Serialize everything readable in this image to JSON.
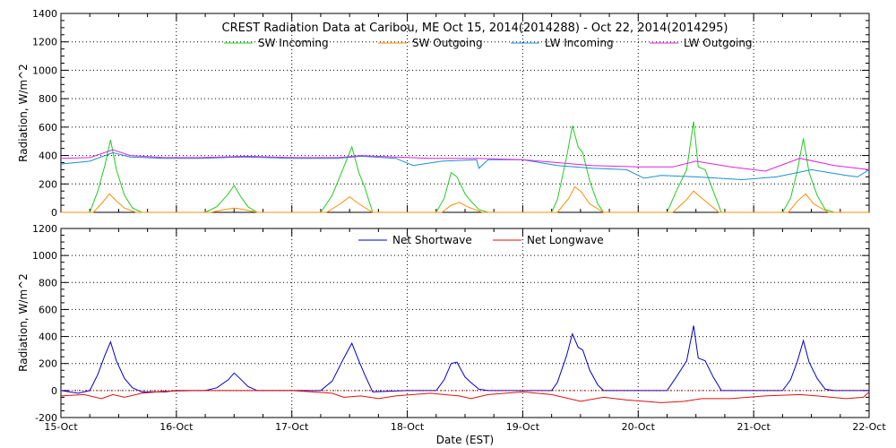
{
  "chart_data": [
    {
      "type": "line",
      "title": "CREST Radiation Data at Caribou, ME   Oct 15, 2014(2014288) - Oct 22, 2014(2014295)",
      "ylabel": "Radiation, W/m^2",
      "xlabel": "",
      "ylim": [
        0,
        1400
      ],
      "yticks": [
        0,
        200,
        400,
        600,
        800,
        1000,
        1200,
        1400
      ],
      "xlim": [
        0,
        7
      ],
      "grid": true,
      "legend": "top",
      "series": [
        {
          "name": "SW Incoming",
          "color": "#22cc22",
          "x": [
            0,
            0.25,
            0.32,
            0.38,
            0.43,
            0.48,
            0.55,
            0.62,
            0.7,
            1.0,
            1.25,
            1.35,
            1.45,
            1.5,
            1.55,
            1.62,
            1.7,
            2.0,
            2.25,
            2.35,
            2.45,
            2.52,
            2.58,
            2.63,
            2.7,
            3.0,
            3.25,
            3.32,
            3.38,
            3.43,
            3.5,
            3.55,
            3.62,
            3.7,
            4.0,
            4.25,
            4.3,
            4.38,
            4.43,
            4.48,
            4.52,
            4.58,
            4.65,
            4.7,
            5.0,
            5.25,
            5.33,
            5.42,
            5.48,
            5.52,
            5.58,
            5.65,
            5.72,
            6.0,
            6.25,
            6.32,
            6.38,
            6.43,
            6.48,
            6.55,
            6.62,
            6.7,
            7.0
          ],
          "y": [
            0,
            0,
            150,
            330,
            510,
            300,
            120,
            30,
            0,
            0,
            0,
            40,
            130,
            190,
            120,
            40,
            0,
            0,
            0,
            120,
            320,
            460,
            280,
            180,
            0,
            0,
            0,
            100,
            280,
            250,
            130,
            80,
            20,
            0,
            0,
            0,
            90,
            390,
            610,
            460,
            420,
            220,
            60,
            0,
            0,
            0,
            150,
            300,
            640,
            320,
            300,
            150,
            0,
            0,
            0,
            100,
            300,
            520,
            280,
            120,
            20,
            0,
            0
          ]
        },
        {
          "name": "SW Outgoing",
          "color": "#ff8c00",
          "x": [
            0,
            0.28,
            0.35,
            0.42,
            0.48,
            0.55,
            0.65,
            1.0,
            1.3,
            1.42,
            1.5,
            1.58,
            1.7,
            2.0,
            2.3,
            2.42,
            2.5,
            2.58,
            2.7,
            3.0,
            3.3,
            3.38,
            3.45,
            3.52,
            3.65,
            4.0,
            4.3,
            4.4,
            4.45,
            4.5,
            4.58,
            4.7,
            5.0,
            5.3,
            5.42,
            5.48,
            5.55,
            5.7,
            6.0,
            6.3,
            6.38,
            6.45,
            6.52,
            6.65,
            7.0
          ],
          "y": [
            0,
            0,
            60,
            130,
            80,
            30,
            0,
            0,
            0,
            20,
            30,
            20,
            0,
            0,
            0,
            60,
            110,
            60,
            0,
            0,
            0,
            50,
            70,
            40,
            0,
            0,
            0,
            100,
            180,
            150,
            60,
            0,
            0,
            0,
            90,
            150,
            100,
            0,
            0,
            0,
            80,
            130,
            60,
            0,
            0
          ]
        },
        {
          "name": "LW Incoming",
          "color": "#1a8fd0",
          "x": [
            0,
            0.25,
            0.45,
            0.6,
            0.9,
            1.2,
            1.6,
            2.0,
            2.4,
            2.6,
            2.9,
            3.05,
            3.3,
            3.6,
            3.62,
            3.7,
            4.0,
            4.3,
            4.6,
            4.9,
            5.05,
            5.2,
            5.5,
            5.9,
            6.2,
            6.5,
            6.8,
            6.9,
            7.0
          ],
          "y": [
            340,
            360,
            420,
            390,
            380,
            380,
            390,
            380,
            380,
            395,
            380,
            330,
            360,
            370,
            310,
            370,
            370,
            330,
            310,
            300,
            240,
            260,
            250,
            230,
            250,
            300,
            260,
            250,
            300
          ]
        },
        {
          "name": "LW Outgoing",
          "color": "#e020e0",
          "x": [
            0,
            0.25,
            0.45,
            0.6,
            0.9,
            1.2,
            1.6,
            2.0,
            2.4,
            2.6,
            2.9,
            3.2,
            3.6,
            4.0,
            4.3,
            4.6,
            5.0,
            5.3,
            5.5,
            5.8,
            6.1,
            6.4,
            6.7,
            7.0
          ],
          "y": [
            380,
            385,
            440,
            400,
            385,
            385,
            395,
            385,
            385,
            400,
            390,
            380,
            380,
            370,
            350,
            330,
            320,
            320,
            360,
            320,
            290,
            380,
            330,
            300
          ]
        }
      ]
    },
    {
      "type": "line",
      "title": "",
      "xlabel": "Date (EST)",
      "ylabel": "Radiation, W/m^2",
      "ylim": [
        -200,
        1200
      ],
      "yticks": [
        -200,
        0,
        200,
        400,
        600,
        800,
        1000,
        1200
      ],
      "xlim": [
        0,
        7
      ],
      "xticks": [
        "15-Oct",
        "16-Oct",
        "17-Oct",
        "18-Oct",
        "19-Oct",
        "20-Oct",
        "21-Oct",
        "22-Oct"
      ],
      "grid": true,
      "legend": "top",
      "series": [
        {
          "name": "Net Shortwave",
          "color": "#0000cc",
          "x": [
            0,
            0.15,
            0.25,
            0.32,
            0.38,
            0.43,
            0.48,
            0.55,
            0.62,
            0.7,
            0.9,
            1.0,
            1.25,
            1.35,
            1.45,
            1.5,
            1.55,
            1.62,
            1.7,
            2.0,
            2.25,
            2.35,
            2.45,
            2.52,
            2.58,
            2.63,
            2.7,
            3.0,
            3.25,
            3.32,
            3.38,
            3.43,
            3.5,
            3.55,
            3.62,
            3.7,
            4.0,
            4.25,
            4.3,
            4.38,
            4.43,
            4.48,
            4.52,
            4.58,
            4.65,
            4.7,
            5.0,
            5.25,
            5.33,
            5.42,
            5.48,
            5.52,
            5.58,
            5.65,
            5.72,
            6.0,
            6.25,
            6.32,
            6.38,
            6.43,
            6.48,
            6.55,
            6.62,
            6.7,
            7.0
          ],
          "y": [
            0,
            -20,
            0,
            120,
            260,
            360,
            220,
            90,
            20,
            -10,
            -10,
            0,
            0,
            20,
            80,
            130,
            90,
            30,
            0,
            0,
            0,
            70,
            240,
            350,
            220,
            120,
            -10,
            0,
            0,
            80,
            200,
            210,
            100,
            60,
            10,
            0,
            0,
            0,
            60,
            260,
            420,
            320,
            300,
            150,
            40,
            0,
            0,
            0,
            100,
            220,
            480,
            240,
            220,
            100,
            0,
            0,
            0,
            80,
            220,
            370,
            210,
            90,
            10,
            0,
            0
          ]
        },
        {
          "name": "Net Longwave",
          "color": "#dd1111",
          "x": [
            0,
            0.2,
            0.35,
            0.45,
            0.55,
            0.7,
            0.9,
            1.2,
            1.6,
            2.0,
            2.35,
            2.45,
            2.6,
            2.75,
            2.9,
            3.2,
            3.45,
            3.55,
            3.7,
            4.0,
            4.25,
            4.4,
            4.5,
            4.7,
            4.9,
            5.2,
            5.4,
            5.55,
            5.8,
            6.1,
            6.4,
            6.55,
            6.8,
            6.95,
            7.0
          ],
          "y": [
            -40,
            -30,
            -60,
            -30,
            -50,
            -20,
            -5,
            0,
            0,
            0,
            -20,
            -50,
            -40,
            -60,
            -40,
            -20,
            -40,
            -60,
            -30,
            -10,
            -30,
            -60,
            -80,
            -50,
            -70,
            -90,
            -80,
            -60,
            -60,
            -40,
            -30,
            -40,
            -60,
            -50,
            -10
          ]
        }
      ]
    }
  ]
}
